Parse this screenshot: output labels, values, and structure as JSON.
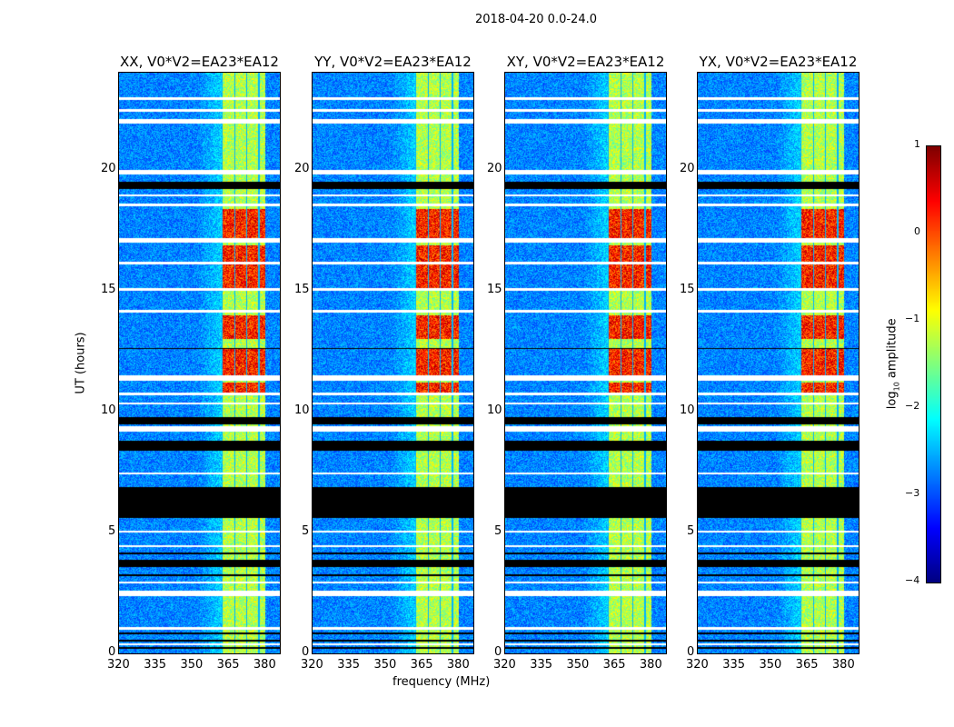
{
  "chart_data": {
    "type": "heatmap",
    "title": "2018-04-20 0.0-24.0",
    "xlabel": "frequency (MHz)",
    "ylabel": "UT (hours)",
    "xlim": [
      320,
      386
    ],
    "ylim": [
      0,
      24
    ],
    "xticks": [
      "320",
      "335",
      "350",
      "365",
      "380"
    ],
    "yticks": [
      "0",
      "5",
      "10",
      "15",
      "20"
    ],
    "panels": [
      {
        "title": "XX, V0*V2=EA23*EA12"
      },
      {
        "title": "YY, V0*V2=EA23*EA12"
      },
      {
        "title": "XY, V0*V2=EA23*EA12"
      },
      {
        "title": "YX, V0*V2=EA23*EA12"
      }
    ],
    "colorbar": {
      "label": "log10 amplitude",
      "label_main": "log",
      "label_sub": "10",
      "label_rest": " amplitude",
      "range": [
        -4,
        1
      ],
      "ticks": [
        "1",
        "0",
        "−1",
        "−2",
        "−3",
        "−4"
      ],
      "colormap": "jet"
    },
    "bright_band_mhz": [
      362,
      380
    ],
    "flagged_black_hours": [
      [
        0.2,
        0.3
      ],
      [
        0.5,
        0.6
      ],
      [
        0.8,
        0.9
      ],
      [
        3.2,
        3.3
      ],
      [
        3.6,
        3.9
      ],
      [
        4.1,
        4.2
      ],
      [
        5.6,
        6.9
      ],
      [
        8.4,
        8.8
      ],
      [
        9.5,
        9.8
      ],
      [
        19.2,
        19.5
      ],
      [
        12.6,
        12.65
      ]
    ],
    "flagged_white_hours": [
      [
        0.35,
        0.45
      ],
      [
        1.0,
        1.1
      ],
      [
        2.4,
        2.6
      ],
      [
        2.9,
        3.0
      ],
      [
        4.4,
        4.5
      ],
      [
        5.0,
        5.1
      ],
      [
        7.4,
        7.5
      ],
      [
        9.2,
        9.4
      ],
      [
        10.3,
        10.4
      ],
      [
        10.7,
        10.8
      ],
      [
        11.3,
        11.5
      ],
      [
        14.1,
        14.2
      ],
      [
        15.0,
        15.1
      ],
      [
        16.1,
        16.2
      ],
      [
        17.0,
        17.2
      ],
      [
        18.5,
        18.6
      ],
      [
        18.9,
        19.0
      ],
      [
        19.8,
        20.0
      ],
      [
        21.9,
        22.1
      ],
      [
        22.4,
        22.5
      ],
      [
        22.9,
        23.0
      ]
    ],
    "hot_hours": [
      [
        11.5,
        12.6
      ],
      [
        13.0,
        14.0
      ],
      [
        15.1,
        16.9
      ],
      [
        17.2,
        18.4
      ],
      [
        10.8,
        11.2
      ]
    ]
  }
}
